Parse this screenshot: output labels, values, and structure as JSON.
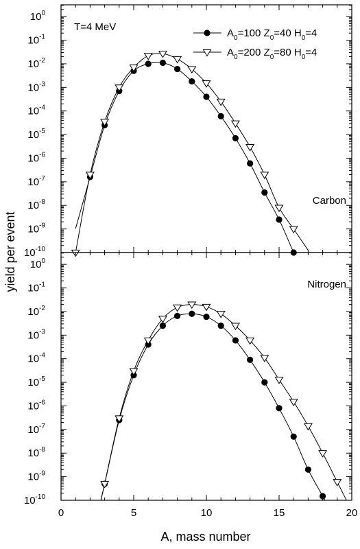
{
  "chart_data": {
    "type": "scatter",
    "xlabel": "A, mass number",
    "ylabel": "yield per event",
    "xlim": [
      0,
      20
    ],
    "ylim": [
      -10,
      0.5
    ],
    "y_scale": "log",
    "x_ticks": [
      0,
      5,
      10,
      15,
      20
    ],
    "y_tick_exponents": [
      0,
      -1,
      -2,
      -3,
      -4,
      -5,
      -6,
      -7,
      -8,
      -9,
      -10
    ],
    "annotation": "T=4 MeV",
    "legend_position": "top-right",
    "legend": [
      {
        "parts": [
          "A",
          "0",
          "=100 Z",
          "0",
          "=40 H",
          "0",
          "=4"
        ],
        "marker": "filled-circle"
      },
      {
        "parts": [
          "A",
          "0",
          "=200 Z",
          "0",
          "=80 H",
          "0",
          "=4"
        ],
        "marker": "open-triangle-down"
      }
    ],
    "panels": [
      {
        "label": "Carbon",
        "series": [
          {
            "name": "A0=100 Z0=40 H0=4",
            "marker": "filled-circle",
            "x": [
              2,
              3,
              4,
              5,
              6,
              7,
              8,
              9,
              10,
              11,
              12,
              13,
              14,
              15,
              16
            ],
            "y": [
              1.6e-07,
              2.5e-05,
              0.0007,
              0.005,
              0.01,
              0.011,
              0.006,
              0.0018,
              0.0004,
              6e-05,
              7e-06,
              6e-07,
              3.5e-08,
              2.5e-09,
              1e-10
            ]
          },
          {
            "name": "A0=200 Z0=80 H0=4",
            "marker": "open-triangle-down",
            "x": [
              1,
              2,
              3,
              4,
              5,
              6,
              7,
              8,
              9,
              10,
              11,
              12,
              13,
              14,
              15,
              16
            ],
            "y": [
              1e-10,
              2e-07,
              3.5e-05,
              0.001,
              0.007,
              0.022,
              0.027,
              0.016,
              0.006,
              0.0015,
              0.00025,
              3e-05,
              3e-06,
              2e-07,
              8e-09,
              1e-09
            ]
          }
        ]
      },
      {
        "label": "Nitrogen",
        "series": [
          {
            "name": "A0=100 Z0=40 H0=4",
            "marker": "filled-circle",
            "x": [
              3,
              4,
              5,
              6,
              7,
              8,
              9,
              10,
              11,
              12,
              13,
              14,
              15,
              16,
              17,
              18
            ],
            "y": [
              5e-10,
              2.5e-07,
              2e-05,
              0.0004,
              0.0025,
              0.0065,
              0.008,
              0.006,
              0.0025,
              0.0006,
              9e-05,
              1e-05,
              8e-07,
              5e-08,
              2e-09,
              1.5e-10
            ]
          },
          {
            "name": "A0=200 Z0=80 H0=4",
            "marker": "open-triangle-down",
            "x": [
              3,
              4,
              5,
              6,
              7,
              8,
              9,
              10,
              11,
              12,
              13,
              14,
              15,
              16,
              17,
              18,
              19
            ],
            "y": [
              5e-10,
              3e-07,
              3e-05,
              0.0006,
              0.005,
              0.015,
              0.02,
              0.016,
              0.008,
              0.0025,
              0.0006,
              0.00011,
              1.3e-05,
              1.5e-06,
              1.4e-07,
              1e-08,
              6e-10
            ]
          }
        ]
      }
    ]
  }
}
